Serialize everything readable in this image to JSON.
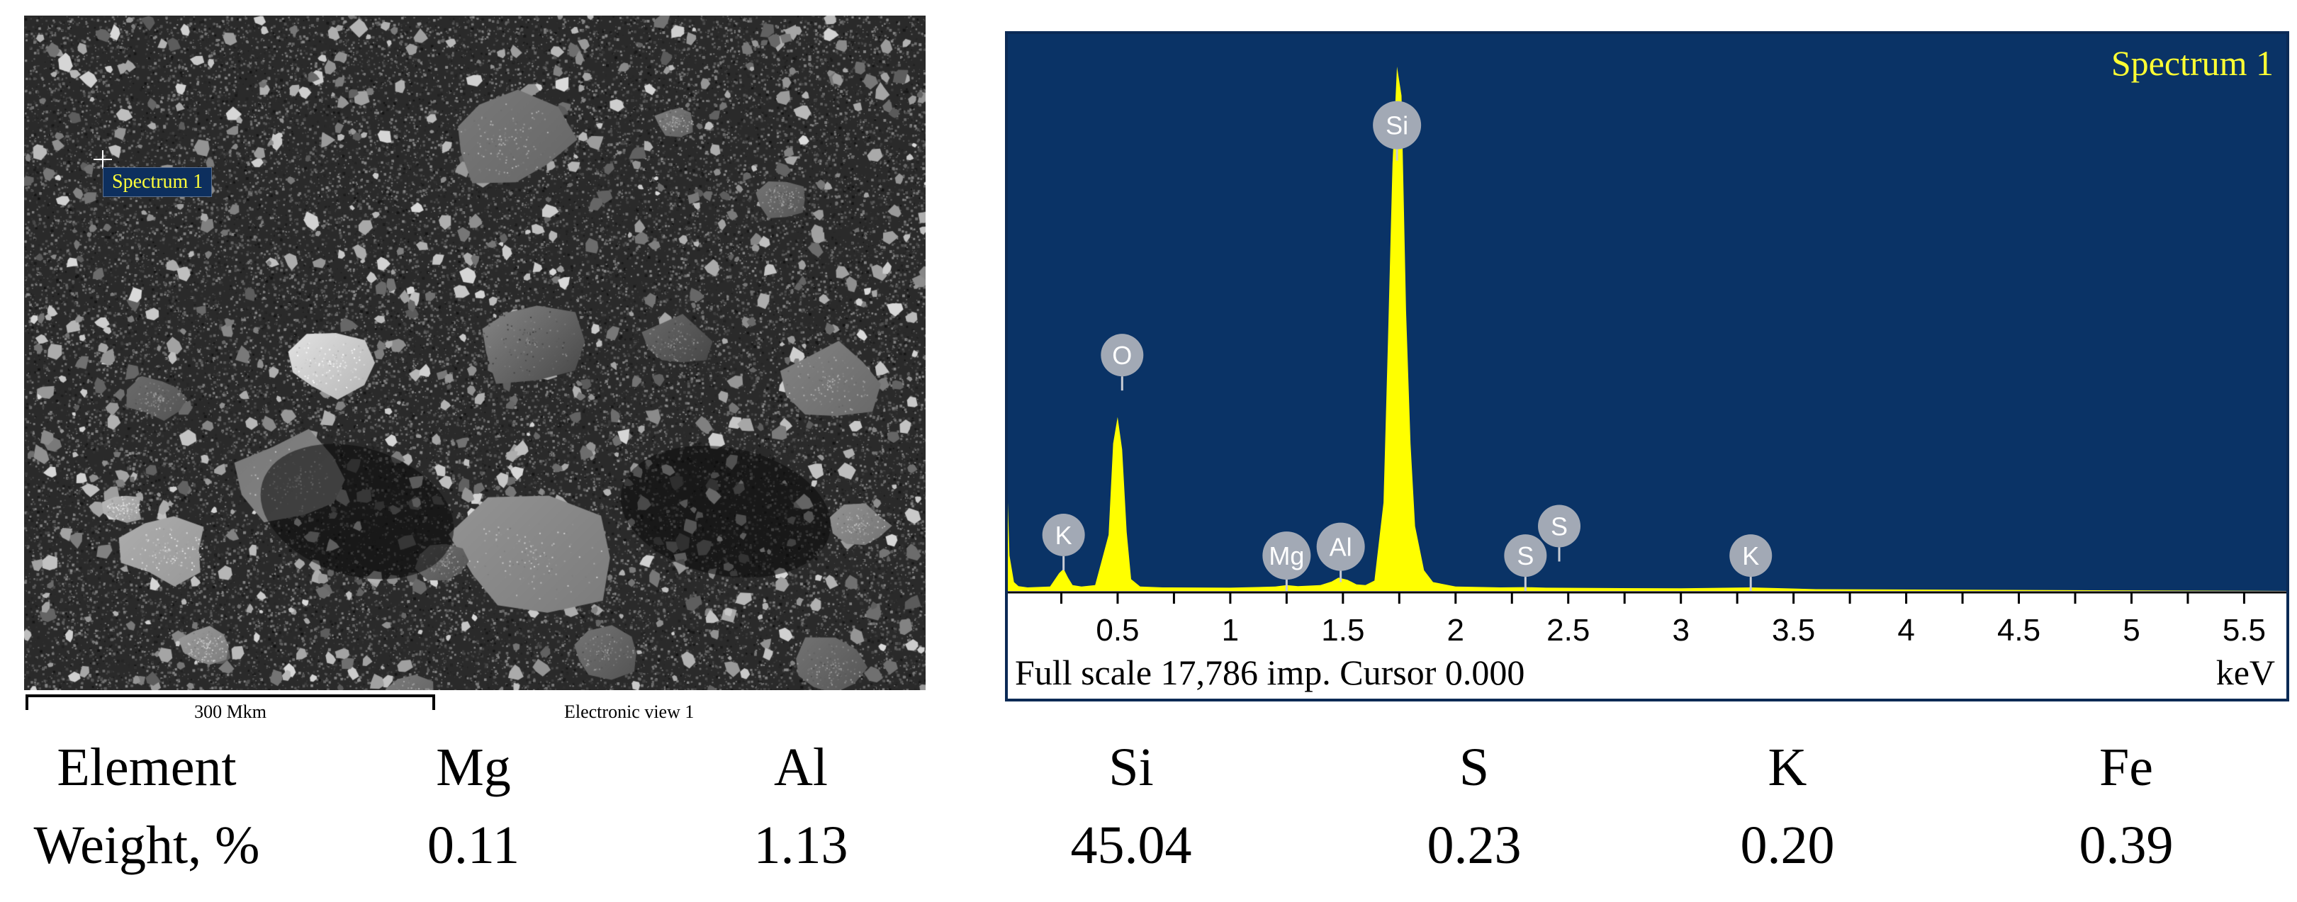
{
  "sem_image": {
    "spectrum_label": "Spectrum 1",
    "scale_label": "300 Mkm",
    "view_label": "Electronic view 1"
  },
  "chart_data": {
    "type": "area",
    "title": "Spectrum 1",
    "xlabel": "keV",
    "xlim": [
      0,
      5.7
    ],
    "xticks": [
      0.5,
      1,
      1.5,
      2,
      2.5,
      3,
      3.5,
      4,
      4.5,
      5,
      5.5
    ],
    "xtick_labels": [
      "0.5",
      "1",
      "1.5",
      "2",
      "2.5",
      "3",
      "3.5",
      "4",
      "4.5",
      "5",
      "5.5"
    ],
    "full_scale_text": "Full scale 17,786 imp. Cursor 0.000",
    "unit_label": "keV",
    "background_color": "#0a3366",
    "trace_color": "#ffff00",
    "series": [
      {
        "x": [
          0.0,
          0.01,
          0.02,
          0.04,
          0.06,
          0.1,
          0.2,
          0.24,
          0.26,
          0.28,
          0.3,
          0.34,
          0.4,
          0.46,
          0.48,
          0.5,
          0.52,
          0.54,
          0.56,
          0.6,
          0.7,
          1.0,
          1.2,
          1.25,
          1.3,
          1.4,
          1.45,
          1.48,
          1.52,
          1.56,
          1.6,
          1.64,
          1.68,
          1.7,
          1.72,
          1.74,
          1.76,
          1.78,
          1.8,
          1.82,
          1.86,
          1.9,
          2.0,
          2.2,
          2.31,
          2.4,
          2.6,
          3.0,
          3.31,
          3.6,
          5.7
        ],
        "y": [
          4200,
          3600,
          1200,
          300,
          160,
          120,
          150,
          600,
          750,
          450,
          200,
          150,
          200,
          1900,
          5000,
          5900,
          4800,
          2000,
          400,
          150,
          120,
          110,
          150,
          200,
          160,
          200,
          320,
          450,
          380,
          220,
          200,
          350,
          3000,
          8500,
          14500,
          17786,
          16800,
          9500,
          5000,
          2200,
          700,
          300,
          150,
          120,
          130,
          110,
          100,
          90,
          120,
          60,
          0
        ]
      }
    ],
    "peak_labels": [
      {
        "element": "K",
        "x": 0.26,
        "level": 1900
      },
      {
        "element": "O",
        "x": 0.52,
        "level": 8000
      },
      {
        "element": "Mg",
        "x": 1.25,
        "level": 1200
      },
      {
        "element": "Al",
        "x": 1.49,
        "level": 1500
      },
      {
        "element": "Si",
        "x": 1.74,
        "level": 15800
      },
      {
        "element": "S",
        "x": 2.31,
        "level": 1200
      },
      {
        "element": "S",
        "x": 2.46,
        "level": 2200
      },
      {
        "element": "K",
        "x": 3.31,
        "level": 1200
      }
    ]
  },
  "composition_table": {
    "row_headers": [
      "Element",
      "Weight, %"
    ],
    "elements": [
      "Mg",
      "Al",
      "Si",
      "S",
      "K",
      "Fe"
    ],
    "weights": [
      "0.11",
      "1.13",
      "45.04",
      "0.23",
      "0.20",
      "0.39"
    ]
  }
}
